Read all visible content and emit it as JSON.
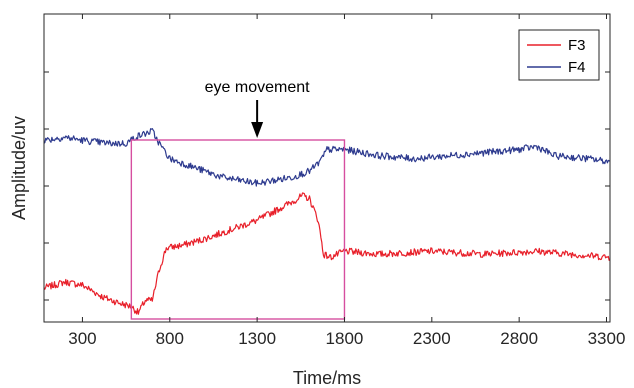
{
  "chart_data": {
    "type": "line",
    "xlabel": "Time/ms",
    "ylabel": "Amplitude/uv",
    "xlim": [
      80,
      3320
    ],
    "ylim": [
      0,
      1
    ],
    "x_ticks": [
      300,
      800,
      1300,
      1800,
      2300,
      2800,
      3300
    ],
    "y_ticks_labeled": false,
    "y_tick_count": 5,
    "grid": false,
    "legend": {
      "position": "top-right"
    },
    "annotation": {
      "text": "eye movement",
      "arrow_x": 1300,
      "box_x": [
        580,
        1800
      ],
      "box_color": "#D64FA0"
    },
    "series": [
      {
        "name": "F3",
        "color": "#E8202A",
        "points": [
          [
            80,
            0.11
          ],
          [
            200,
            0.13
          ],
          [
            300,
            0.12
          ],
          [
            420,
            0.08
          ],
          [
            520,
            0.06
          ],
          [
            580,
            0.05
          ],
          [
            620,
            0.03
          ],
          [
            660,
            0.07
          ],
          [
            700,
            0.07
          ],
          [
            740,
            0.17
          ],
          [
            780,
            0.24
          ],
          [
            880,
            0.25
          ],
          [
            1000,
            0.27
          ],
          [
            1100,
            0.29
          ],
          [
            1200,
            0.31
          ],
          [
            1300,
            0.33
          ],
          [
            1400,
            0.36
          ],
          [
            1500,
            0.39
          ],
          [
            1560,
            0.41
          ],
          [
            1600,
            0.4
          ],
          [
            1650,
            0.33
          ],
          [
            1680,
            0.22
          ],
          [
            1720,
            0.21
          ],
          [
            1800,
            0.23
          ],
          [
            2000,
            0.22
          ],
          [
            2300,
            0.23
          ],
          [
            2600,
            0.22
          ],
          [
            2900,
            0.23
          ],
          [
            3100,
            0.22
          ],
          [
            3320,
            0.21
          ]
        ]
      },
      {
        "name": "F4",
        "color": "#2E3B8F",
        "points": [
          [
            80,
            0.59
          ],
          [
            200,
            0.6
          ],
          [
            300,
            0.59
          ],
          [
            450,
            0.58
          ],
          [
            550,
            0.58
          ],
          [
            600,
            0.6
          ],
          [
            650,
            0.61
          ],
          [
            700,
            0.62
          ],
          [
            740,
            0.58
          ],
          [
            800,
            0.53
          ],
          [
            900,
            0.51
          ],
          [
            1000,
            0.49
          ],
          [
            1100,
            0.47
          ],
          [
            1200,
            0.46
          ],
          [
            1300,
            0.45
          ],
          [
            1400,
            0.46
          ],
          [
            1500,
            0.47
          ],
          [
            1600,
            0.49
          ],
          [
            1660,
            0.52
          ],
          [
            1700,
            0.56
          ],
          [
            1800,
            0.56
          ],
          [
            2000,
            0.54
          ],
          [
            2200,
            0.53
          ],
          [
            2400,
            0.54
          ],
          [
            2600,
            0.55
          ],
          [
            2800,
            0.56
          ],
          [
            2900,
            0.57
          ],
          [
            3000,
            0.54
          ],
          [
            3200,
            0.53
          ],
          [
            3320,
            0.52
          ]
        ]
      }
    ]
  }
}
